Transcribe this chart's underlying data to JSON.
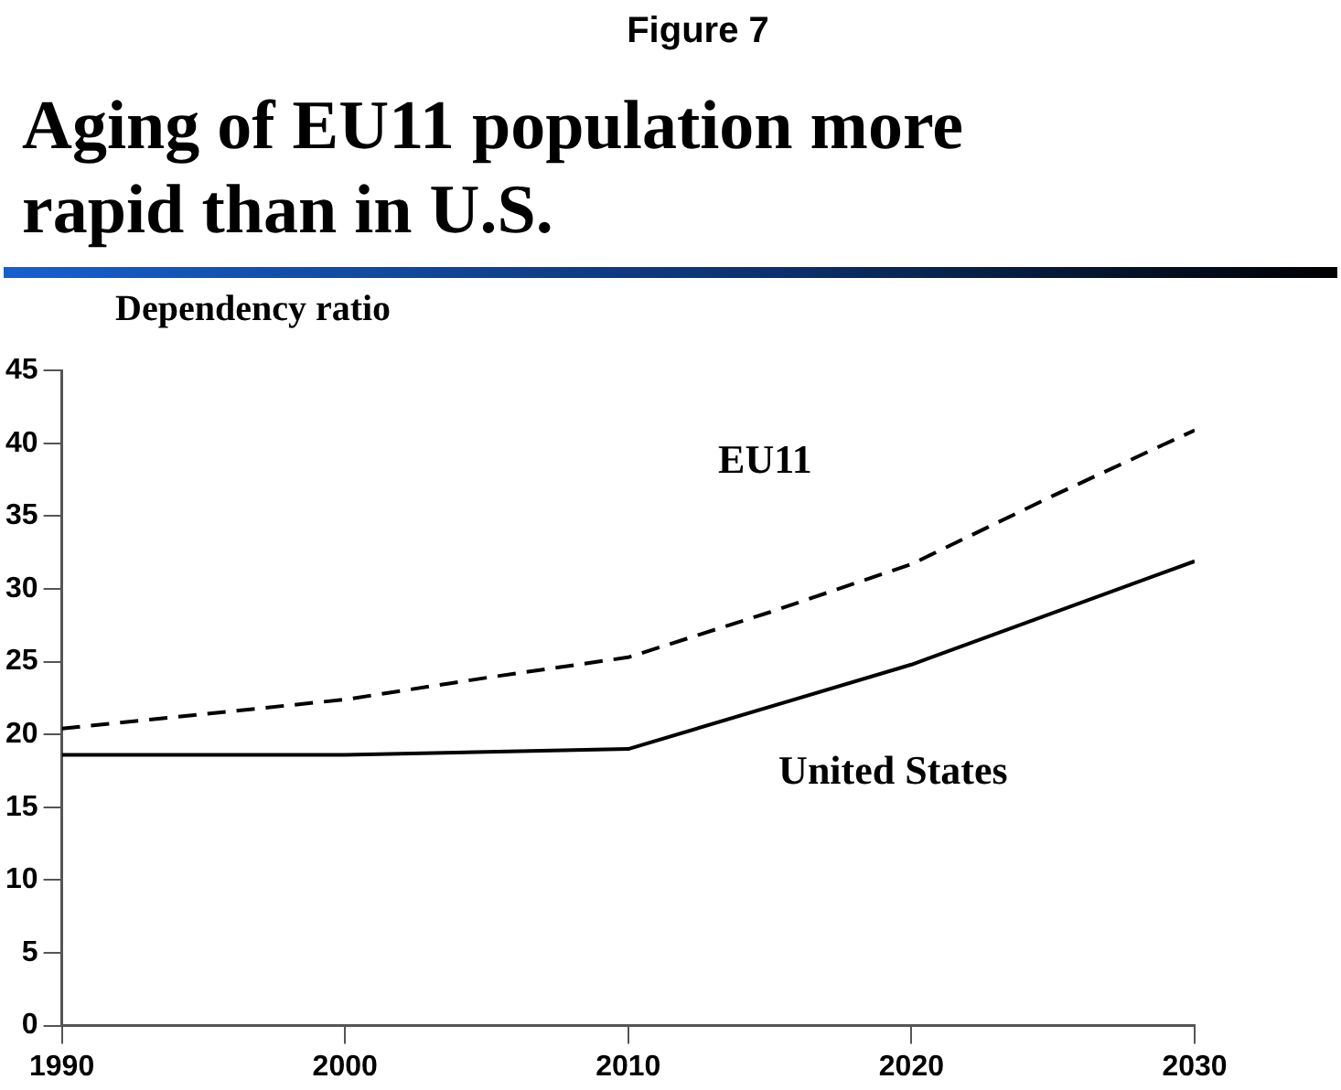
{
  "chart_data": {
    "type": "line",
    "subtitle": "Figure 7",
    "title": "Aging of EU11 population more rapid than in U.S.",
    "ylabel": "Dependency ratio",
    "series": [
      {
        "name": "EU11",
        "color": "#000000",
        "line_style": "dashed",
        "x": [
          1990,
          1995,
          2000,
          2005,
          2010,
          2015,
          2020,
          2025,
          2030
        ],
        "values": [
          20.4,
          21.4,
          22.4,
          23.9,
          25.3,
          28.4,
          31.7,
          36.4,
          40.9
        ]
      },
      {
        "name": "United States",
        "color": "#000000",
        "line_style": "solid",
        "x": [
          1990,
          2000,
          2010,
          2020,
          2030
        ],
        "values": [
          18.6,
          18.6,
          19.0,
          24.8,
          31.9
        ]
      }
    ],
    "xlim": [
      1990,
      2030
    ],
    "xticks": [
      1990,
      2000,
      2010,
      2020,
      2030
    ],
    "ylim": [
      0,
      45
    ],
    "yticks": [
      0,
      5,
      10,
      15,
      20,
      25,
      30,
      35,
      40,
      45
    ],
    "grid": false,
    "legend": false,
    "marker": "none"
  }
}
